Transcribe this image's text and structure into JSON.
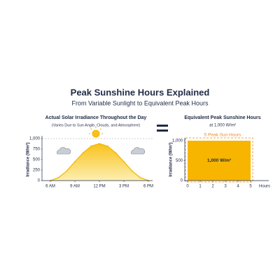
{
  "header": {
    "title": "Peak Sunshine Hours Explained",
    "subtitle": "From Variable Sunlight to Equivalent Peak Hours"
  },
  "chart_data": [
    {
      "type": "area",
      "title": "Actual Solar Irradiance Throughout the Day",
      "subtitle": "(Varies Due to Sun Angle, Clouds, and Atmosphere)",
      "y_label": "Irradiance (W/m²)",
      "color": "#f2b705",
      "x": [
        6,
        7,
        8,
        9,
        10,
        11,
        12,
        13,
        14,
        15,
        16,
        17,
        18
      ],
      "values": [
        0,
        70,
        230,
        450,
        660,
        820,
        880,
        820,
        660,
        450,
        230,
        70,
        0
      ],
      "xlim": [
        6,
        18
      ],
      "xticks": [
        {
          "value": 6,
          "label": "6 AM"
        },
        {
          "value": 9,
          "label": "9 AM"
        },
        {
          "value": 12,
          "label": "12 PM"
        },
        {
          "value": 15,
          "label": "3 PM"
        },
        {
          "value": 18,
          "label": "6 PM"
        }
      ],
      "ylim": [
        0,
        1000
      ],
      "yticks": [
        0,
        250,
        500,
        750,
        {
          "value": 1000,
          "label": "1,000"
        }
      ]
    },
    {
      "type": "histogram",
      "title": "Equivalent Peak Sunshine Hours",
      "subtitle": "at 1,000 W/m²",
      "y_label": "Irradiance (W/m²)",
      "x_label": "Hours",
      "annotation": "5 Peak Sun Hours",
      "color": "#f7b500",
      "accent": "#ef8a1e",
      "bins": [
        0,
        5
      ],
      "values": [
        1000
      ],
      "value_labels": [
        "1,000 W/m²"
      ],
      "xlim": [
        0,
        5
      ],
      "xticks": [
        0,
        1,
        2,
        3,
        4,
        5
      ],
      "ylim": [
        0,
        1000
      ],
      "yticks": [
        0,
        500,
        {
          "value": 1000,
          "label": "1,000"
        }
      ]
    }
  ]
}
